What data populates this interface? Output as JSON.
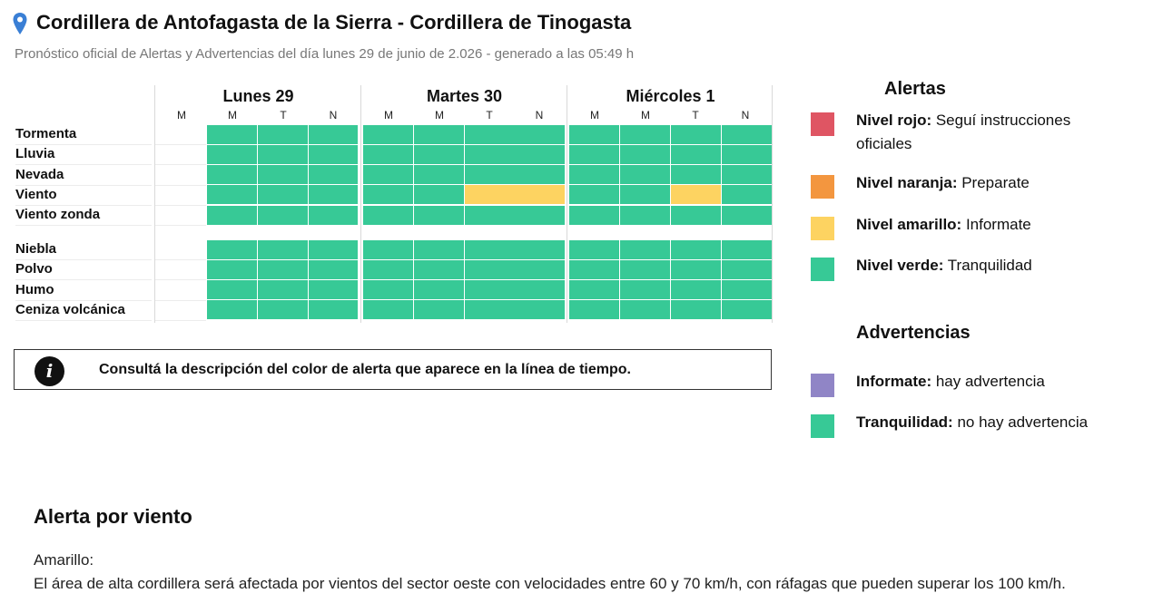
{
  "header": {
    "title": "Cordillera de Antofagasta de la Sierra - Cordillera de Tinogasta",
    "subtitle": "Pronóstico oficial de Alertas y Advertencias del día lunes 29 de junio de 2.026 - generado a las 05:49 h",
    "icon": "location-pin-icon"
  },
  "colors": {
    "rojo": "#df5563",
    "naranja": "#f3963f",
    "amarillo": "#fdd361",
    "verde": "#37c996",
    "violeta": "#9085c6",
    "empty": "#ffffff"
  },
  "timeline": {
    "days": [
      {
        "name": "Lunes 29",
        "periods": [
          "M",
          "M",
          "T",
          "N"
        ]
      },
      {
        "name": "Martes 30",
        "periods": [
          "M",
          "M",
          "T",
          "N"
        ]
      },
      {
        "name": "Miércoles 1",
        "periods": [
          "M",
          "M",
          "T",
          "N"
        ]
      }
    ],
    "alert_rows": [
      {
        "label": "Tormenta",
        "levels": [
          "none",
          "verde",
          "verde",
          "verde",
          "verde",
          "verde",
          "verde",
          "verde",
          "verde",
          "verde",
          "verde",
          "verde"
        ]
      },
      {
        "label": "Lluvia",
        "levels": [
          "none",
          "verde",
          "verde",
          "verde",
          "verde",
          "verde",
          "verde",
          "verde",
          "verde",
          "verde",
          "verde",
          "verde"
        ]
      },
      {
        "label": "Nevada",
        "levels": [
          "none",
          "verde",
          "verde",
          "verde",
          "verde",
          "verde",
          "verde",
          "verde",
          "verde",
          "verde",
          "verde",
          "verde"
        ]
      },
      {
        "label": "Viento",
        "levels": [
          "none",
          "verde",
          "verde",
          "verde",
          "verde",
          "verde",
          "amarillo",
          "amarillo",
          "verde",
          "verde",
          "amarillo",
          "verde"
        ]
      },
      {
        "label": "Viento zonda",
        "levels": [
          "none",
          "verde",
          "verde",
          "verde",
          "verde",
          "verde",
          "verde",
          "verde",
          "verde",
          "verde",
          "verde",
          "verde"
        ]
      }
    ],
    "advisory_rows": [
      {
        "label": "Niebla",
        "levels": [
          "none",
          "verde",
          "verde",
          "verde",
          "verde",
          "verde",
          "verde",
          "verde",
          "verde",
          "verde",
          "verde",
          "verde"
        ]
      },
      {
        "label": "Polvo",
        "levels": [
          "none",
          "verde",
          "verde",
          "verde",
          "verde",
          "verde",
          "verde",
          "verde",
          "verde",
          "verde",
          "verde",
          "verde"
        ]
      },
      {
        "label": "Humo",
        "levels": [
          "none",
          "verde",
          "verde",
          "verde",
          "verde",
          "verde",
          "verde",
          "verde",
          "verde",
          "verde",
          "verde",
          "verde"
        ]
      },
      {
        "label": "Ceniza volcánica",
        "levels": [
          "none",
          "verde",
          "verde",
          "verde",
          "verde",
          "verde",
          "verde",
          "verde",
          "verde",
          "verde",
          "verde",
          "verde"
        ]
      }
    ]
  },
  "info": {
    "icon": "info-icon",
    "icon_glyph": "i",
    "text": "Consultá la descripción del color de alerta que aparece en la línea de tiempo."
  },
  "legend": {
    "alertas_title": "Alertas",
    "alertas": [
      {
        "bold": "Nivel rojo:",
        "text": " Seguí instrucciones oficiales",
        "color": "#df5563"
      },
      {
        "bold": "Nivel naranja:",
        "text": " Preparate",
        "color": "#f3963f"
      },
      {
        "bold": "Nivel amarillo:",
        "text": " Informate",
        "color": "#fdd361"
      },
      {
        "bold": "Nivel verde:",
        "text": " Tranquilidad",
        "color": "#37c996"
      }
    ],
    "advertencias_title": "Advertencias",
    "advertencias": [
      {
        "bold": "Informate:",
        "text": " hay advertencia",
        "color": "#9085c6"
      },
      {
        "bold": "Tranquilidad:",
        "text": " no hay advertencia",
        "color": "#37c996"
      }
    ]
  },
  "detail": {
    "title": "Alerta por viento",
    "level": "Amarillo:",
    "text": "El área de alta cordillera será afectada por vientos del sector oeste con velocidades entre 60 y 70 km/h, con ráfagas que pueden superar los 100 km/h."
  }
}
